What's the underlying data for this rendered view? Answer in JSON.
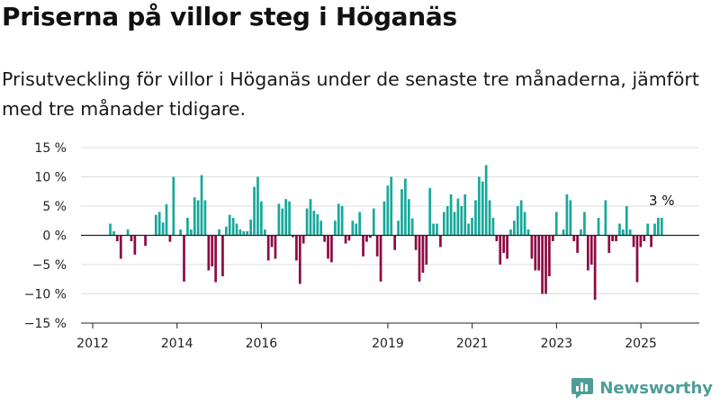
{
  "title": "Priserna på villor steg i Höganäs",
  "subtitle": "Prisutveckling för villor i Höganäs under de senaste tre månaderna, jämfört med tre månader tidigare.",
  "brand": "Newsworthy",
  "colors": {
    "positive": "#18a89a",
    "negative": "#8c0a45",
    "grid": "#dddddd",
    "axis": "#222222",
    "brand": "#4d9d96"
  },
  "chart_data": {
    "type": "bar",
    "title": "",
    "xlabel": "",
    "ylabel": "",
    "ylim": [
      -15,
      15
    ],
    "y_ticks": [
      15,
      10,
      5,
      0,
      -5,
      -10,
      -15
    ],
    "y_tick_labels": [
      "15 %",
      "10 %",
      "5 %",
      "0 %",
      "−5 %",
      "−10 %",
      "−15 %"
    ],
    "x_ticks": [
      2012,
      2014,
      2016,
      2019,
      2021,
      2023,
      2025
    ],
    "x_tick_labels": [
      "2012",
      "2014",
      "2016",
      "2019",
      "2021",
      "2023",
      "2025"
    ],
    "x_range": [
      2012.0,
      2026.3
    ],
    "x_start": 2012.417,
    "x_step": 0.0833,
    "values": [
      2.0,
      0.7,
      -1.0,
      -4.0,
      0.0,
      1.0,
      -1.0,
      -3.3,
      0.0,
      0.0,
      -1.8,
      0.0,
      0.0,
      3.5,
      4.0,
      2.2,
      5.3,
      -1.1,
      10.0,
      0.0,
      1.0,
      -7.9,
      3.0,
      1.0,
      6.5,
      6.0,
      10.3,
      6.0,
      -6.0,
      -5.3,
      -8.0,
      1.0,
      -7.0,
      1.5,
      3.5,
      3.0,
      2.0,
      1.0,
      0.7,
      0.7,
      2.7,
      8.3,
      10.0,
      5.8,
      1.0,
      -4.3,
      -2.0,
      -4.0,
      5.4,
      4.6,
      6.2,
      5.8,
      -0.3,
      -4.3,
      -8.3,
      -1.4,
      4.6,
      6.2,
      4.2,
      3.6,
      2.5,
      -1.1,
      -4.0,
      -4.6,
      2.5,
      5.4,
      5.0,
      -1.4,
      -0.9,
      2.5,
      2.0,
      4.0,
      -3.6,
      -1.1,
      -0.4,
      4.6,
      -3.6,
      -7.9,
      5.8,
      8.5,
      10.0,
      -2.5,
      2.5,
      7.9,
      9.7,
      6.2,
      2.9,
      -2.5,
      -7.9,
      -6.4,
      -5.0,
      8.1,
      2.0,
      2.0,
      -2.0,
      4.0,
      5.0,
      7.0,
      4.0,
      6.3,
      5.0,
      7.0,
      2.0,
      3.0,
      6.0,
      10.0,
      9.2,
      12.0,
      6.0,
      3.0,
      -1.0,
      -5.0,
      -3.0,
      -4.0,
      1.0,
      2.5,
      5.0,
      6.0,
      4.0,
      1.0,
      -4.0,
      -6.0,
      -6.0,
      -10.0,
      -10.0,
      -7.0,
      -1.0,
      4.0,
      0.0,
      1.0,
      7.0,
      6.0,
      -1.0,
      -3.0,
      1.0,
      4.0,
      -6.0,
      -5.0,
      -11.0,
      3.0,
      0.0,
      6.0,
      -3.0,
      -1.0,
      -1.0,
      2.0,
      1.0,
      5.0,
      1.0,
      -2.0,
      -8.0,
      -2.0,
      -1.0,
      2.0,
      -2.0,
      2.0,
      3.0,
      3.0
    ],
    "annotation": {
      "text": "3 %",
      "value": 3.0
    }
  }
}
